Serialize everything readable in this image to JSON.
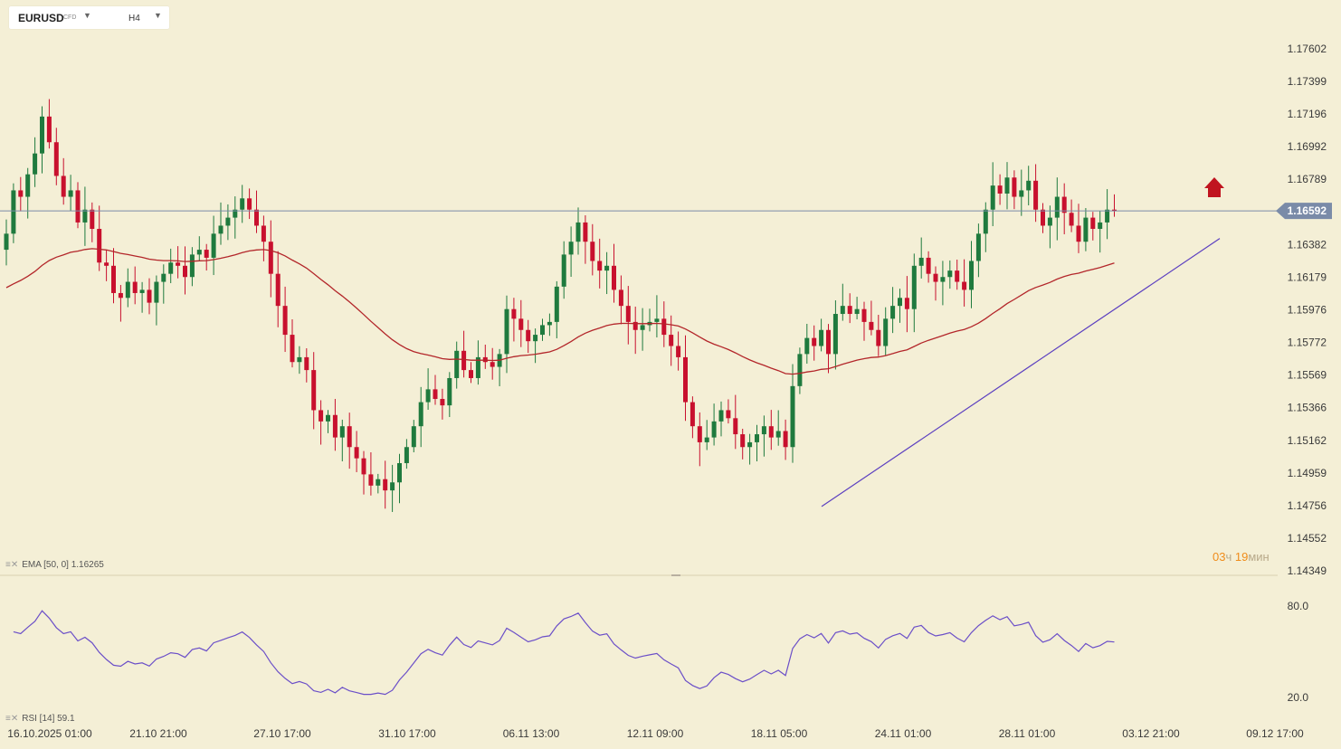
{
  "header": {
    "symbol": "EURUSD",
    "symbol_type": "CFD",
    "timeframe": "H4"
  },
  "indicators": {
    "ema_label": "EMA [50, 0] 1.16265",
    "rsi_label": "RSI [14] 59.1"
  },
  "timer": {
    "hours": "03",
    "hours_unit": "ч",
    "minutes": "19",
    "minutes_unit": "мин"
  },
  "current_price": "1.16592",
  "colors": {
    "background": "#f4efd6",
    "bull": "#1f7a3e",
    "bear": "#c8102e",
    "ema": "#b3262a",
    "rsi": "#6b4fc8",
    "trendline": "#5b3fc0",
    "price_line": "#7a8ba8",
    "price_tag": "#7a8ba8",
    "arrow": "#c0141f"
  },
  "chart_data": [
    {
      "type": "candlestick",
      "title": "EURUSD CFD, H4",
      "y_ticks": [
        "1.17602",
        "1.17399",
        "1.17196",
        "1.16992",
        "1.16789",
        "1.16382",
        "1.16179",
        "1.15976",
        "1.15772",
        "1.15569",
        "1.15366",
        "1.15162",
        "1.14959",
        "1.14756",
        "1.14552",
        "1.14349"
      ],
      "x_ticks": [
        "16.10.2025  01:00",
        "21.10  21:00",
        "27.10  17:00",
        "31.10  17:00",
        "06.11  13:00",
        "12.11  09:00",
        "18.11  05:00",
        "24.11  01:00",
        "28.11  01:00",
        "03.12  21:00",
        "09.12  17:00"
      ],
      "ylim": [
        1.14349,
        1.17602
      ],
      "current_price": 1.16592,
      "closes": [
        1.1645,
        1.1672,
        1.1668,
        1.1682,
        1.1695,
        1.1718,
        1.1702,
        1.1681,
        1.1668,
        1.1672,
        1.1652,
        1.166,
        1.1648,
        1.1627,
        1.1625,
        1.1608,
        1.1605,
        1.1615,
        1.1608,
        1.161,
        1.1602,
        1.1615,
        1.162,
        1.1627,
        1.1625,
        1.1618,
        1.1632,
        1.1635,
        1.163,
        1.1645,
        1.165,
        1.1655,
        1.166,
        1.1667,
        1.166,
        1.165,
        1.164,
        1.162,
        1.16,
        1.1582,
        1.1565,
        1.1568,
        1.156,
        1.1535,
        1.1528,
        1.1532,
        1.1518,
        1.1525,
        1.1512,
        1.1505,
        1.1495,
        1.1488,
        1.1492,
        1.1485,
        1.149,
        1.1502,
        1.1512,
        1.1525,
        1.154,
        1.1548,
        1.1542,
        1.1538,
        1.1555,
        1.1572,
        1.156,
        1.1555,
        1.1568,
        1.1565,
        1.1562,
        1.157,
        1.1598,
        1.1592,
        1.1585,
        1.1578,
        1.1582,
        1.1588,
        1.159,
        1.1612,
        1.1632,
        1.164,
        1.1652,
        1.164,
        1.1628,
        1.1622,
        1.1625,
        1.161,
        1.16,
        1.159,
        1.1585,
        1.1588,
        1.159,
        1.1592,
        1.1582,
        1.1575,
        1.1568,
        1.154,
        1.1525,
        1.1515,
        1.1518,
        1.1528,
        1.1535,
        1.153,
        1.152,
        1.1512,
        1.1515,
        1.152,
        1.1525,
        1.1518,
        1.1522,
        1.1512,
        1.155,
        1.157,
        1.158,
        1.1575,
        1.1585,
        1.157,
        1.1595,
        1.16,
        1.1595,
        1.1598,
        1.159,
        1.1585,
        1.1575,
        1.1592,
        1.16,
        1.1605,
        1.1598,
        1.1625,
        1.163,
        1.162,
        1.1615,
        1.1618,
        1.1622,
        1.1615,
        1.161,
        1.1628,
        1.1645,
        1.166,
        1.1675,
        1.167,
        1.168,
        1.1668,
        1.1672,
        1.1678,
        1.166,
        1.165,
        1.1655,
        1.1668,
        1.1658,
        1.165,
        1.164,
        1.1655,
        1.1648,
        1.1652,
        1.166,
        1.16592
      ],
      "series": [
        {
          "name": "EMA [50, 0]",
          "last": 1.16265
        }
      ]
    },
    {
      "type": "line",
      "title": "RSI [14]",
      "y_ticks": [
        "80.0",
        "20.0"
      ],
      "ylim": [
        20,
        80
      ],
      "last": 59.1
    }
  ]
}
